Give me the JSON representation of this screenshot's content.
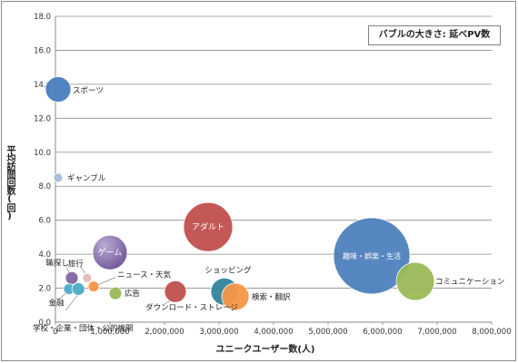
{
  "chart_data": {
    "type": "bubble",
    "size_note": "バブルの大きさ: 延べPV数",
    "xlabel": "ユニークユーザー数(人)",
    "ylabel": "平均訪問回数(回)",
    "xlim": [
      0,
      8000000
    ],
    "ylim": [
      0,
      18
    ],
    "x_ticks": [
      "0",
      "1,000,000",
      "2,000,000",
      "3,000,000",
      "4,000,000",
      "5,000,000",
      "6,000,000",
      "7,000,000",
      "8,000,000"
    ],
    "y_ticks": [
      "0.0",
      "2.0",
      "4.0",
      "6.0",
      "8.0",
      "10.0",
      "12.0",
      "14.0",
      "16.0",
      "18.0"
    ],
    "grid": "horizontal",
    "points": [
      {
        "label": "スポーツ",
        "x": 50000,
        "y": 13.7,
        "color": "#4a7ebf"
      },
      {
        "label": "ギャンブル",
        "x": 50000,
        "y": 8.5,
        "color": "#a7bcd9"
      },
      {
        "label": "アダルト",
        "x": 2800000,
        "y": 5.6,
        "color": "#c0504d"
      },
      {
        "label": "ゲーム",
        "x": 1000000,
        "y": 4.1,
        "color": "#8064a2"
      },
      {
        "label": "旅行",
        "x": 580000,
        "y": 2.6,
        "color": "#e6b9b8"
      },
      {
        "label": "職探し",
        "x": 300000,
        "y": 2.6,
        "color": "#8064a2"
      },
      {
        "label": "ニュース・天気",
        "x": 700000,
        "y": 2.1,
        "color": "#f79646"
      },
      {
        "label": "金融",
        "x": 250000,
        "y": 1.95,
        "color": "#4bacc6"
      },
      {
        "label": "学校・企業・団体・公的機関",
        "x": 420000,
        "y": 1.95,
        "color": "#4bacc6"
      },
      {
        "label": "広告",
        "x": 1100000,
        "y": 1.7,
        "color": "#9bbb59"
      },
      {
        "label": "ダウンロード・ストレージ",
        "x": 2200000,
        "y": 1.8,
        "color": "#c0504d"
      },
      {
        "label": "ショッピング",
        "x": 3100000,
        "y": 1.8,
        "color": "#31849b"
      },
      {
        "label": "検索・翻訳",
        "x": 3300000,
        "y": 1.5,
        "color": "#f79646"
      },
      {
        "label": "趣味・娯楽・生活",
        "x": 5800000,
        "y": 3.9,
        "color": "#4f81bd"
      },
      {
        "label": "コミュニケーション",
        "x": 6600000,
        "y": 2.4,
        "color": "#9bbb59"
      }
    ]
  }
}
